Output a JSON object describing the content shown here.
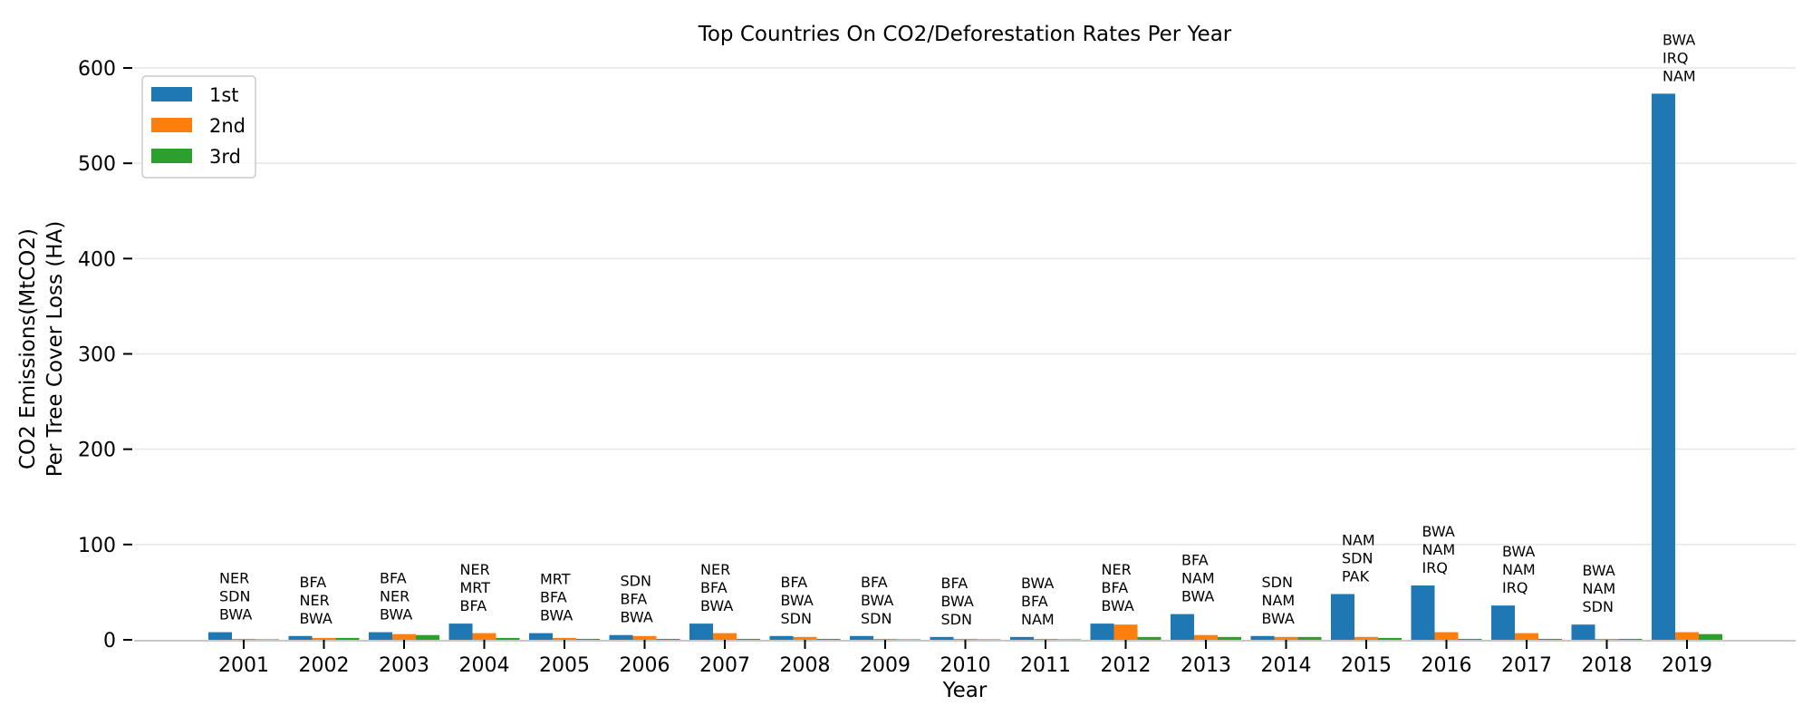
{
  "chart_data": {
    "type": "bar",
    "title": "Top Countries On CO2/Deforestation Rates Per Year",
    "xlabel": "Year",
    "ylabel_lines": [
      "CO2 Emissions(MtCO2)",
      "Per Tree Cover Loss (HA)"
    ],
    "ylim": [
      0,
      600
    ],
    "yticks": [
      0,
      100,
      200,
      300,
      400,
      500,
      600
    ],
    "grid": "y",
    "legend_position": "top-left",
    "categories": [
      "2001",
      "2002",
      "2003",
      "2004",
      "2005",
      "2006",
      "2007",
      "2008",
      "2009",
      "2010",
      "2011",
      "2012",
      "2013",
      "2014",
      "2015",
      "2016",
      "2017",
      "2018",
      "2019"
    ],
    "series": [
      {
        "name": "1st",
        "color": "#1f77b4",
        "values": [
          8,
          4,
          8,
          17,
          7,
          5,
          17,
          4,
          4,
          3,
          3,
          17,
          27,
          4,
          48,
          57,
          36,
          16,
          573
        ]
      },
      {
        "name": "2nd",
        "color": "#ff7f0e",
        "values": [
          1,
          2,
          6,
          7,
          2,
          4,
          7,
          3,
          1,
          1,
          1,
          16,
          5,
          3,
          3,
          8,
          7,
          1,
          8
        ]
      },
      {
        "name": "3rd",
        "color": "#2ca02c",
        "values": [
          0.5,
          2,
          5,
          2,
          1,
          1,
          1,
          1,
          0.5,
          0.5,
          0.5,
          3,
          3,
          3,
          2,
          1,
          1,
          1,
          6
        ]
      }
    ],
    "annotations": [
      [
        "NER",
        "SDN",
        "BWA"
      ],
      [
        "BFA",
        "NER",
        "BWA"
      ],
      [
        "BFA",
        "NER",
        "BWA"
      ],
      [
        "NER",
        "MRT",
        "BFA"
      ],
      [
        "MRT",
        "BFA",
        "BWA"
      ],
      [
        "SDN",
        "BFA",
        "BWA"
      ],
      [
        "NER",
        "BFA",
        "BWA"
      ],
      [
        "BFA",
        "BWA",
        "SDN"
      ],
      [
        "BFA",
        "BWA",
        "SDN"
      ],
      [
        "BFA",
        "BWA",
        "SDN"
      ],
      [
        "BWA",
        "BFA",
        "NAM"
      ],
      [
        "NER",
        "BFA",
        "BWA"
      ],
      [
        "BFA",
        "NAM",
        "BWA"
      ],
      [
        "SDN",
        "NAM",
        "BWA"
      ],
      [
        "NAM",
        "SDN",
        "PAK"
      ],
      [
        "BWA",
        "NAM",
        "IRQ"
      ],
      [
        "BWA",
        "NAM",
        "IRQ"
      ],
      [
        "BWA",
        "NAM",
        "SDN"
      ],
      [
        "BWA",
        "IRQ",
        "NAM"
      ]
    ]
  }
}
